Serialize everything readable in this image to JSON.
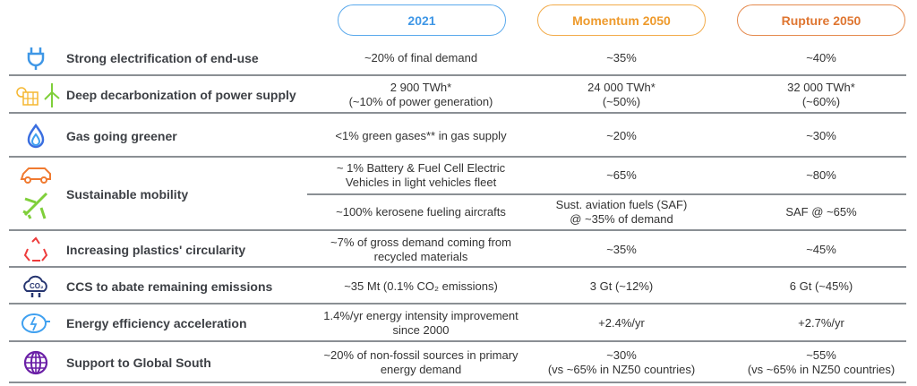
{
  "headers": [
    "2021",
    "Momentum 2050",
    "Rupture 2050"
  ],
  "rows": [
    {
      "icon": "plug-icon",
      "label": "Strong electrification of end-use",
      "c2021": "~20% of final demand",
      "momentum": "~35%",
      "rupture": "~40%"
    },
    {
      "icon": "solar-wind-icon",
      "label": "Deep decarbonization of power supply",
      "c2021": "2 900 TWh*\n(~10% of power generation)",
      "momentum": "24 000 TWh*\n(~50%)",
      "rupture": "32 000 TWh*\n(~60%)"
    },
    {
      "icon": "flame-icon",
      "label": "Gas going greener",
      "c2021": "<1% green gases** in gas supply",
      "momentum": "~20%",
      "rupture": "~30%"
    },
    {
      "icon": "car-plane-icon",
      "label": "Sustainable mobility",
      "sub": [
        {
          "c2021": "~ 1% Battery & Fuel Cell Electric\nVehicles in light vehicles fleet",
          "momentum": "~65%",
          "rupture": "~80%"
        },
        {
          "c2021": "~100% kerosene fueling aircrafts",
          "momentum": "Sust. aviation fuels (SAF)\n@ ~35% of demand",
          "rupture": "SAF @ ~65%"
        }
      ]
    },
    {
      "icon": "recycle-icon",
      "label": "Increasing plastics' circularity",
      "c2021": "~7% of gross demand coming from\nrecycled materials",
      "momentum": "~35%",
      "rupture": "~45%"
    },
    {
      "icon": "co2-cloud-icon",
      "label": "CCS to abate remaining emissions",
      "c2021": "~35 Mt (0.1% CO₂ emissions)",
      "momentum": "3 Gt (~12%)",
      "rupture": "6 Gt (~45%)"
    },
    {
      "icon": "piggy-bank-icon",
      "label": "Energy efficiency acceleration",
      "c2021": "1.4%/yr energy intensity improvement\nsince 2000",
      "momentum": "+2.4%/yr",
      "rupture": "+2.7%/yr"
    },
    {
      "icon": "globe-icon",
      "label": "Support to Global South",
      "c2021": "~20% of non-fossil sources in primary\nenergy demand",
      "momentum": "~30%\n(vs ~65% in NZ50 countries)",
      "rupture": "~55%\n(vs ~65% in NZ50 countries)"
    }
  ]
}
